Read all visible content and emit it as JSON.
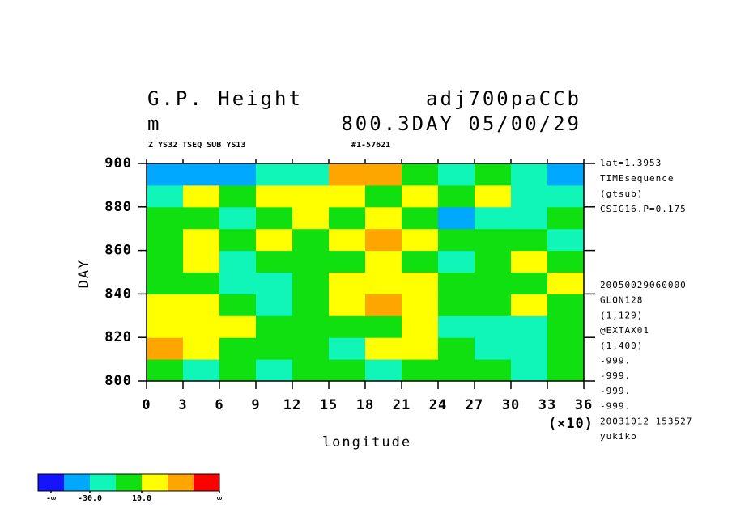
{
  "chart_data": {
    "type": "heatmap",
    "title": "G.P. Height",
    "title_right": "adj700paCCb",
    "units": "m",
    "subtitle_right": "800.3DAY 05/00/29",
    "note_left": "Z YS32 TSEQ SUB YS13",
    "note_right": "#1-57621",
    "ylabel": "DAY",
    "xlabel": "longitude",
    "x_multiplier": "(×10)",
    "xlim": [
      0,
      360
    ],
    "ylim": [
      800,
      900
    ],
    "xticks": [
      {
        "value": 0,
        "label": "0"
      },
      {
        "value": 30,
        "label": "3"
      },
      {
        "value": 60,
        "label": "6"
      },
      {
        "value": 90,
        "label": "9"
      },
      {
        "value": 120,
        "label": "12"
      },
      {
        "value": 150,
        "label": "15"
      },
      {
        "value": 180,
        "label": "18"
      },
      {
        "value": 210,
        "label": "21"
      },
      {
        "value": 240,
        "label": "24"
      },
      {
        "value": 270,
        "label": "27"
      },
      {
        "value": 300,
        "label": "30"
      },
      {
        "value": 330,
        "label": "33"
      },
      {
        "value": 360,
        "label": "36"
      }
    ],
    "yticks": [
      800,
      820,
      840,
      860,
      880,
      900
    ],
    "xbins": [
      0,
      30,
      60,
      90,
      120,
      150,
      180,
      210,
      240,
      270,
      300,
      330,
      360
    ],
    "ybins": [
      800,
      810,
      820,
      830,
      840,
      850,
      860,
      870,
      880,
      890,
      900
    ],
    "z": [
      [
        5,
        -15,
        0,
        -12,
        5,
        0,
        -15,
        5,
        0,
        -5,
        -12,
        5
      ],
      [
        35,
        15,
        -5,
        5,
        0,
        -15,
        15,
        20,
        -5,
        -20,
        -15,
        0
      ],
      [
        25,
        20,
        15,
        5,
        -10,
        5,
        5,
        15,
        -15,
        -25,
        -12,
        5
      ],
      [
        25,
        15,
        -5,
        -15,
        0,
        15,
        45,
        15,
        5,
        -5,
        10,
        5
      ],
      [
        5,
        -5,
        -15,
        -20,
        -5,
        20,
        25,
        15,
        5,
        0,
        -5,
        15
      ],
      [
        5,
        15,
        -15,
        -5,
        -10,
        5,
        15,
        -5,
        -15,
        5,
        10,
        -5
      ],
      [
        -5,
        20,
        5,
        15,
        5,
        25,
        35,
        25,
        5,
        0,
        5,
        -15
      ],
      [
        5,
        -5,
        -15,
        -5,
        15,
        5,
        15,
        5,
        -35,
        -25,
        -15,
        5
      ],
      [
        -25,
        15,
        5,
        15,
        25,
        15,
        5,
        20,
        5,
        15,
        -15,
        -25
      ],
      [
        -35,
        -45,
        -35,
        -25,
        -15,
        45,
        40,
        5,
        -15,
        5,
        -25,
        -35
      ]
    ],
    "levels": [
      -50,
      -30,
      -10,
      10,
      30,
      50
    ],
    "colors": [
      "#1414ff",
      "#00a8ff",
      "#10f5b8",
      "#10e010",
      "#ffff00",
      "#ffa500",
      "#ff0000"
    ],
    "colorbar_labels": [
      {
        "value": -60,
        "label": "-∞"
      },
      {
        "value": -30,
        "label": "-30.0"
      },
      {
        "value": 10,
        "label": "10.0"
      },
      {
        "value": 70,
        "label": "∞"
      }
    ],
    "info_top": [
      "lat=1.3953",
      "TIMEsequence",
      "(gtsub)",
      "CSIG16.P=0.175"
    ],
    "info_bottom": [
      "20050029060000",
      "GLON128",
      "(1,129)",
      "@EXTAX01",
      "(1,400)",
      "-999.",
      "-999.",
      "-999.",
      "-999.",
      "20031012 153527",
      "yukiko"
    ]
  }
}
